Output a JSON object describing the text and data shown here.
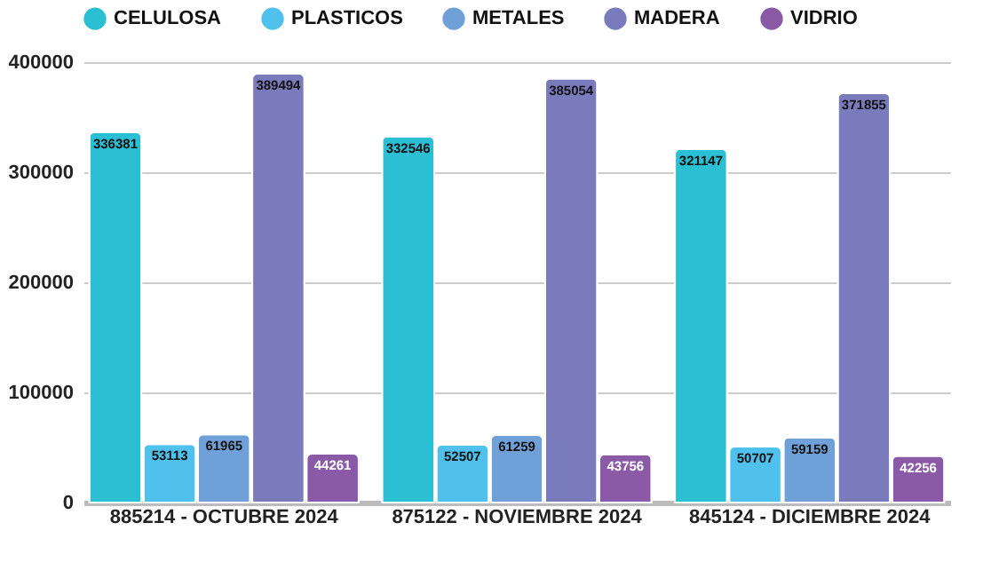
{
  "chart_data": {
    "type": "bar",
    "categories": [
      "885214 - OCTUBRE 2024",
      "875122 - NOVIEMBRE 2024",
      "845124 - DICIEMBRE 2024"
    ],
    "series": [
      {
        "name": "CELULOSA",
        "color": "#2bbfd4",
        "values": [
          336381,
          332546,
          321147
        ]
      },
      {
        "name": "PLASTICOS",
        "color": "#4fc1ec",
        "values": [
          53113,
          52507,
          50707
        ]
      },
      {
        "name": "METALES",
        "color": "#6fa1d8",
        "values": [
          61965,
          61259,
          59159
        ]
      },
      {
        "name": "MADERA",
        "color": "#7a7bbd",
        "values": [
          389494,
          385054,
          371855
        ]
      },
      {
        "name": "VIDRIO",
        "color": "#8b5aa6",
        "values": [
          44261,
          43756,
          42256
        ]
      }
    ],
    "ylim": [
      0,
      400000
    ],
    "yticks": [
      0,
      100000,
      200000,
      300000,
      400000
    ],
    "grid": "y",
    "legend": "top",
    "data_labels": true
  }
}
